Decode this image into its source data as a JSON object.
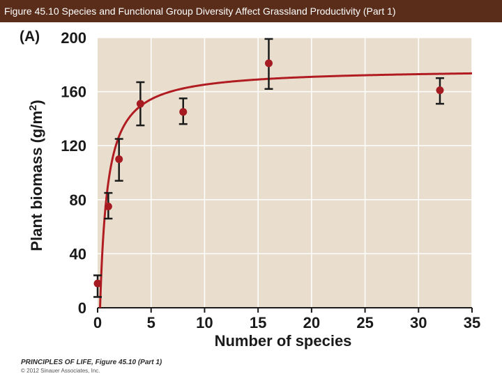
{
  "header": {
    "title": "Figure 45.10  Species and Functional Group Diversity Affect Grassland Productivity (Part 1)"
  },
  "figure": {
    "panel_label": "(A)",
    "credit_line1": "PRINCIPLES OF LIFE, Figure 45.10 (Part 1)",
    "credit_line2": "© 2012 Sinauer Associates, Inc."
  },
  "colors": {
    "title_bar": "#5a2d1a",
    "plot_background": "#e9decd",
    "grid": "#ffffff",
    "curve": "#b01c22",
    "point": "#a51b21",
    "error_bar": "#1a1a1a"
  },
  "chart_data": {
    "type": "scatter",
    "title": "",
    "xlabel": "Number of species",
    "ylabel": "Plant biomass (g/m²)",
    "ylabel_main": "Plant biomass (g/m",
    "ylabel_sup": "2",
    "ylabel_close": ")",
    "xlim": [
      0,
      35
    ],
    "ylim": [
      0,
      200
    ],
    "xticks": [
      0,
      5,
      10,
      15,
      20,
      25,
      30,
      35
    ],
    "yticks": [
      0,
      40,
      80,
      120,
      160,
      200
    ],
    "grid": true,
    "points": [
      {
        "x": 0,
        "y": 18,
        "err_low": 8,
        "err_high": 24
      },
      {
        "x": 1,
        "y": 75,
        "err_low": 66,
        "err_high": 85
      },
      {
        "x": 2,
        "y": 110,
        "err_low": 94,
        "err_high": 125
      },
      {
        "x": 4,
        "y": 151,
        "err_low": 135,
        "err_high": 167
      },
      {
        "x": 8,
        "y": 145,
        "err_low": 136,
        "err_high": 155
      },
      {
        "x": 16,
        "y": 181,
        "err_low": 162,
        "err_high": 199
      },
      {
        "x": 32,
        "y": 161,
        "err_low": 151,
        "err_high": 170
      }
    ],
    "fit_curve": {
      "model": "saturating",
      "asymptote": 177,
      "half_saturation": 0.7,
      "x_offset": 0.23
    }
  }
}
